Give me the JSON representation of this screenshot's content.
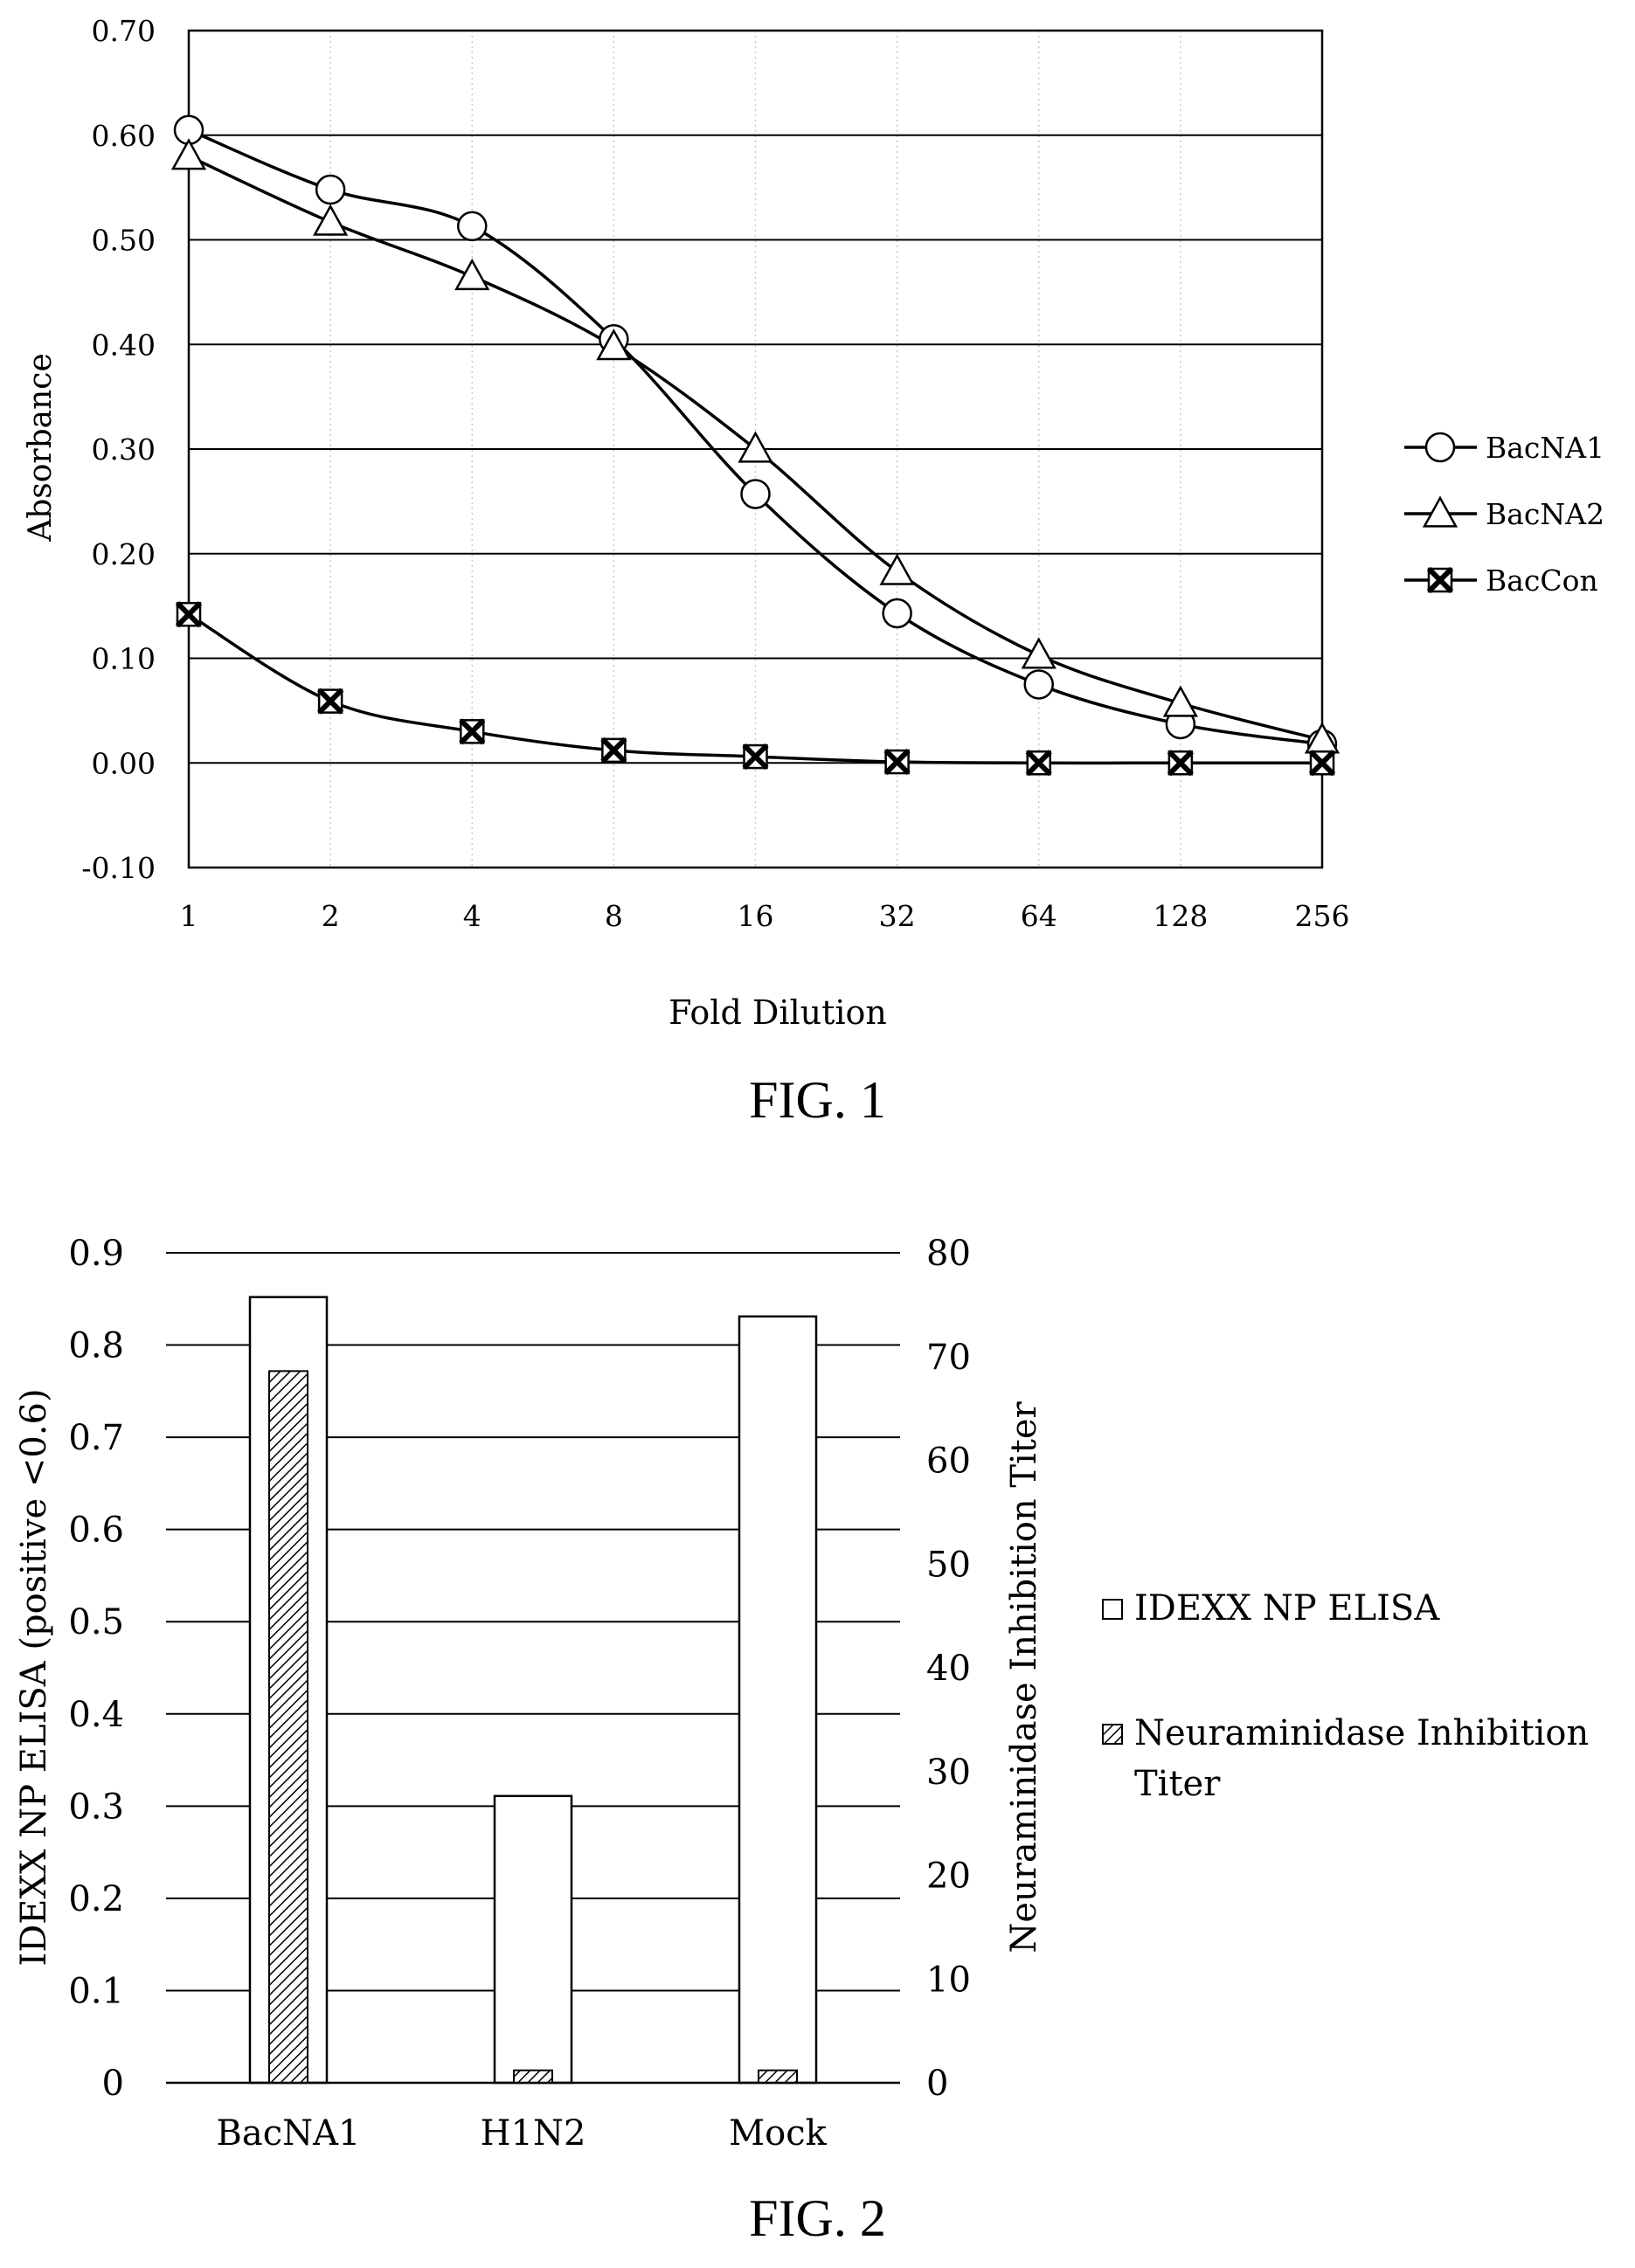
{
  "figures": [
    {
      "caption": "FIG. 1"
    },
    {
      "caption": "FIG. 2"
    }
  ],
  "chart_data": [
    {
      "type": "line",
      "title": "",
      "xlabel": "Fold Dilution",
      "ylabel": "Absorbance",
      "x": [
        1,
        2,
        4,
        8,
        16,
        32,
        64,
        128,
        256
      ],
      "x_tick_labels": [
        "1",
        "2",
        "4",
        "8",
        "16",
        "32",
        "64",
        "128",
        "256"
      ],
      "x_scale": "log2",
      "y_tick_labels": [
        "-0.10",
        "0.00",
        "0.10",
        "0.20",
        "0.30",
        "0.40",
        "0.50",
        "0.60",
        "0.70"
      ],
      "ylim": [
        -0.1,
        0.7
      ],
      "grid": true,
      "legend_position": "right",
      "series": [
        {
          "name": "BacNA1",
          "marker": "circle",
          "values": [
            0.605,
            0.548,
            0.513,
            0.405,
            0.257,
            0.143,
            0.075,
            0.037,
            0.018
          ]
        },
        {
          "name": "BacNA2",
          "marker": "triangle",
          "values": [
            0.58,
            0.517,
            0.465,
            0.398,
            0.3,
            0.183,
            0.103,
            0.057,
            0.022
          ]
        },
        {
          "name": "BacCon",
          "marker": "x-box",
          "values": [
            0.142,
            0.059,
            0.03,
            0.012,
            0.006,
            0.001,
            0.0,
            0.0,
            0.0
          ]
        }
      ]
    },
    {
      "type": "bar",
      "title": "",
      "categories": [
        "BacNA1",
        "H1N2",
        "Mock"
      ],
      "ylabel": "IDEXX NP ELISA (positive <0.6)",
      "y2label": "Neuraminidase Inhibition Titer",
      "ylim": [
        0,
        0.9
      ],
      "y2lim": [
        0,
        80
      ],
      "y_tick_labels": [
        "0",
        "0.1",
        "0.2",
        "0.3",
        "0.4",
        "0.5",
        "0.6",
        "0.7",
        "0.8",
        "0.9"
      ],
      "y2_tick_labels": [
        "0",
        "10",
        "20",
        "30",
        "40",
        "50",
        "60",
        "70",
        "80"
      ],
      "grid": true,
      "legend_position": "right",
      "series": [
        {
          "name": "IDEXX NP ELISA",
          "axis": "left",
          "fill": "white",
          "values": [
            0.852,
            0.311,
            0.831
          ]
        },
        {
          "name": "Neuraminidase Inhibition Titer",
          "legend_lines": [
            "Neuraminidase Inhibition",
            "Titer"
          ],
          "axis": "right",
          "fill": "hatched",
          "values": [
            68.6,
            1.2,
            1.2
          ]
        }
      ]
    }
  ]
}
